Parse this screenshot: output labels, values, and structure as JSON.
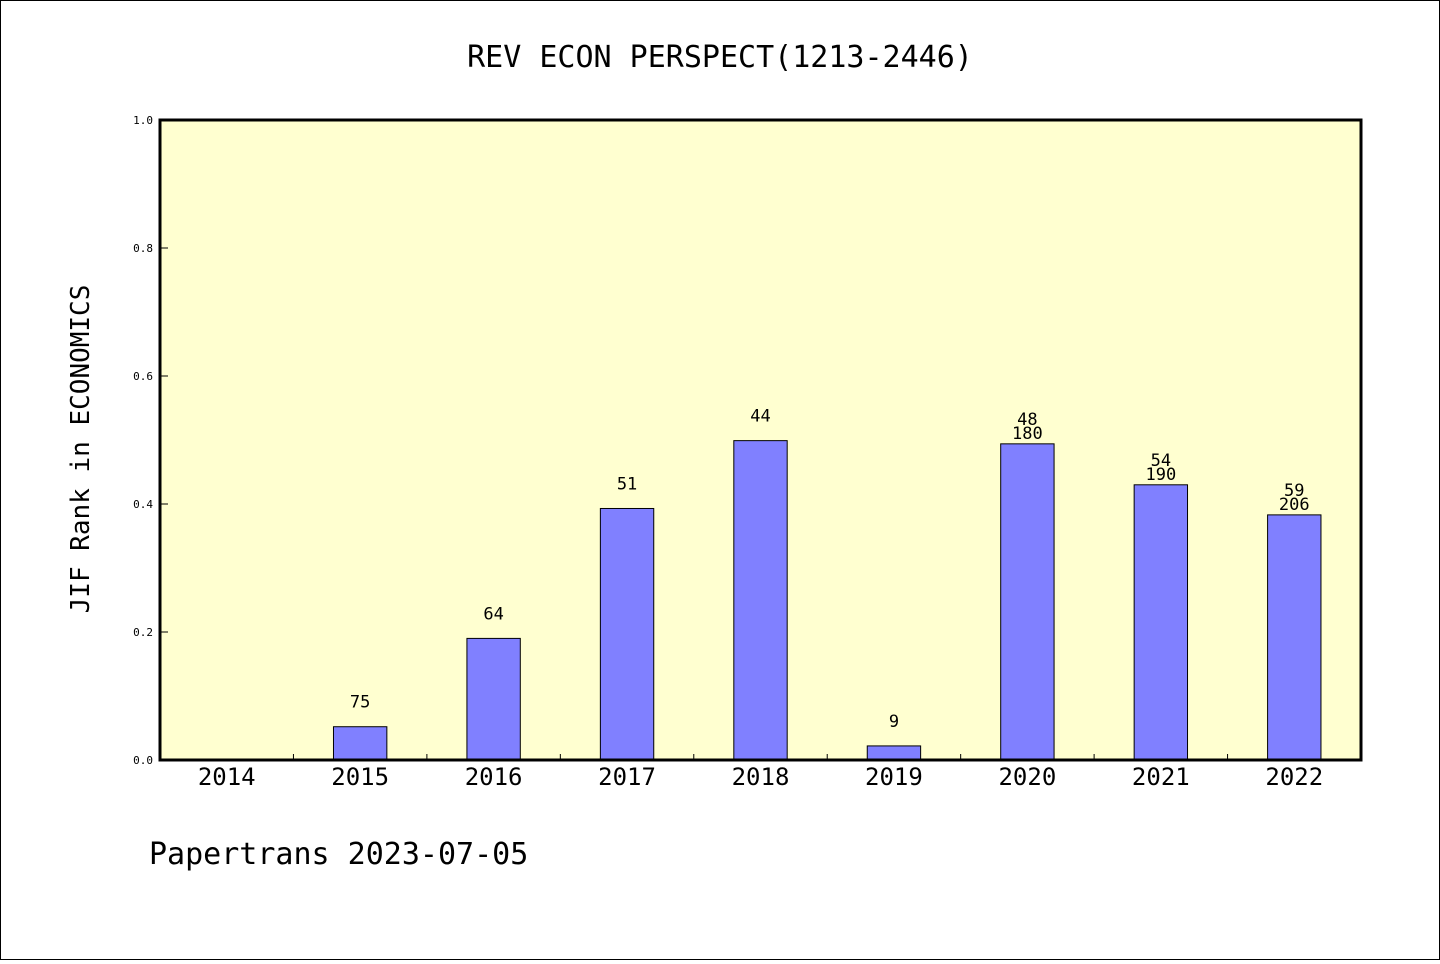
{
  "chart_data": {
    "type": "bar",
    "title": "REV ECON PERSPECT(1213-2446)",
    "ylabel": "JIF Rank in ECONOMICS",
    "xlabel": "",
    "ylim": [
      0,
      1.0
    ],
    "yticks": [
      "0.0",
      "0.2",
      "0.4",
      "0.6",
      "0.8",
      "1.0"
    ],
    "categories": [
      "2014",
      "2015",
      "2016",
      "2017",
      "2018",
      "2019",
      "2020",
      "2021",
      "2022"
    ],
    "values": [
      null,
      0.052,
      0.19,
      0.393,
      0.499,
      0.022,
      0.494,
      0.43,
      0.383
    ],
    "rank_labels": [
      null,
      "75",
      "64",
      "51",
      "44",
      "9",
      "48",
      "54",
      "59"
    ],
    "total_labels": [
      null,
      null,
      null,
      null,
      null,
      null,
      "180",
      "190",
      "206"
    ],
    "colors": {
      "bar": "#8080ff",
      "plot_background": "#ffffd0",
      "axis": "#000000"
    },
    "grid": false
  },
  "footer": {
    "text": "Papertrans 2023-07-05"
  }
}
